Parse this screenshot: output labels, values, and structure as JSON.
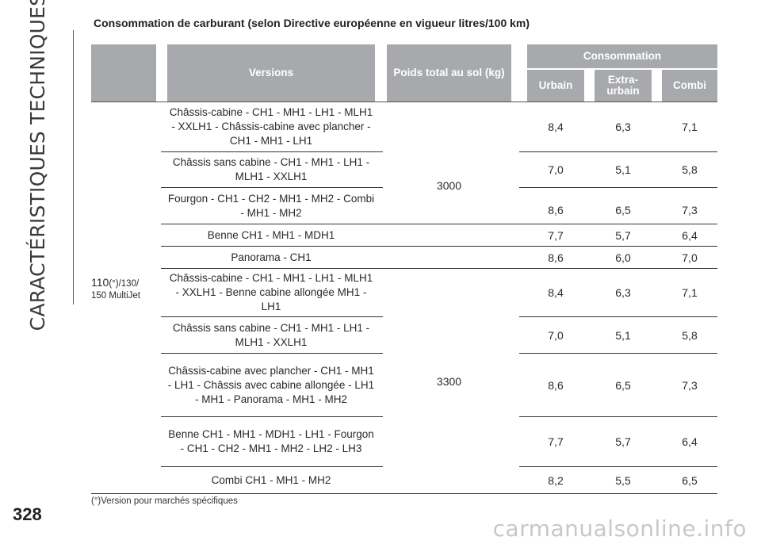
{
  "side_title": "CARACTÉRISTIQUES TECHNIQUES",
  "page_number": "328",
  "heading": "Consommation de carburant (selon Directive européenne en vigueur litres/100 km)",
  "table": {
    "col_versions": "Versions",
    "col_weight": "Poids total au sol (kg)",
    "col_consumption": "Consommation",
    "col_urbain": "Urbain",
    "col_extra": "Extra-urbain",
    "col_combi": "Combi",
    "engine_main": "110",
    "engine_mark": "(°)",
    "engine_rest": "/130/",
    "engine_line2": "150 MultiJet",
    "weights": [
      "3000",
      "3300"
    ],
    "rows": [
      {
        "version": "Châssis-cabine - CH1 - MH1 - LH1 - MLH1 - XXLH1 - Châssis-cabine avec plancher - CH1 - MH1 - LH1",
        "urbain": "8,4",
        "extra": "6,3",
        "combi": "7,1"
      },
      {
        "version": "Châssis sans cabine - CH1 - MH1 - LH1 - MLH1 - XXLH1",
        "urbain": "7,0",
        "extra": "5,1",
        "combi": "5,8"
      },
      {
        "version": "Fourgon - CH1 - CH2 - MH1 - MH2 - Combi - MH1 - MH2",
        "urbain": "8,6",
        "extra": "6,5",
        "combi": "7,3"
      },
      {
        "version": "Benne CH1 - MH1 - MDH1",
        "urbain": "7,7",
        "extra": "5,7",
        "combi": "6,4"
      },
      {
        "version": "Panorama - CH1",
        "urbain": "8,6",
        "extra": "6,0",
        "combi": "7,0"
      },
      {
        "version": "Châssis-cabine - CH1 - MH1 - LH1 - MLH1 - XXLH1 - Benne cabine allongée MH1 - LH1",
        "urbain": "8,4",
        "extra": "6,3",
        "combi": "7,1"
      },
      {
        "version": "Châssis sans cabine - CH1 - MH1 - LH1 - MLH1 - XXLH1",
        "urbain": "7,0",
        "extra": "5,1",
        "combi": "5,8"
      },
      {
        "version": "Châssis-cabine avec plancher - CH1 - MH1 - LH1 - Châssis avec cabine allongée - LH1 - MH1 - Panorama - MH1 - MH2",
        "urbain": "8,6",
        "extra": "6,5",
        "combi": "7,3"
      },
      {
        "version": "Benne CH1 - MH1 - MDH1 - LH1 - Fourgon - CH1 - CH2 - MH1 - MH2 - LH2 - LH3",
        "urbain": "7,7",
        "extra": "5,7",
        "combi": "6,4"
      },
      {
        "version": "Combi CH1 - MH1 - MH2",
        "urbain": "8,2",
        "extra": "5,5",
        "combi": "6,5"
      }
    ]
  },
  "footnote_mark": "(°)",
  "footnote_text": "Version pour marchés spécifiques",
  "watermark": "carmanualsonline.info"
}
